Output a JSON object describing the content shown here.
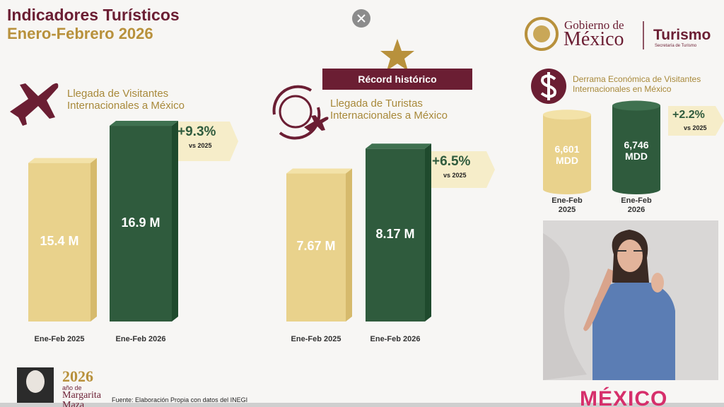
{
  "header": {
    "title": "Indicadores Turísticos",
    "subtitle": "Enero-Febrero 2026"
  },
  "logo": {
    "line1": "Gobierno de",
    "line2": "México",
    "brand": "Turismo",
    "sub": "Secretaría de Turismo"
  },
  "badge": "Récord histórico",
  "chart_data": [
    {
      "type": "bar",
      "shape": "box",
      "title": "Llegada de Visitantes Internacionales a México",
      "categories": [
        "Ene-Feb 2025",
        "Ene-Feb 2026"
      ],
      "values": [
        15.4,
        16.9
      ],
      "value_labels": [
        "15.4 M",
        "16.9 M"
      ],
      "colors": [
        "#e9d28c",
        "#2f5b3d"
      ],
      "ylim": [
        9,
        17.5
      ],
      "annotation": {
        "change": "+9.3%",
        "text": "vs 2025"
      }
    },
    {
      "type": "bar",
      "shape": "box",
      "title": "Llegada de Turistas Internacionales a México",
      "categories": [
        "Ene-Feb 2025",
        "Ene-Feb 2026"
      ],
      "values": [
        7.67,
        8.17
      ],
      "value_labels": [
        "7.67 M",
        "8.17 M"
      ],
      "colors": [
        "#e9d28c",
        "#2f5b3d"
      ],
      "ylim": [
        4.7,
        8.5
      ],
      "annotation": {
        "change": "+6.5%",
        "text": "vs 2025"
      }
    },
    {
      "type": "bar",
      "shape": "cylinder",
      "title": "Derrama Económica de Visitantes Internacionales en México",
      "categories": [
        "Ene-Feb 2025",
        "Ene-Feb 2026"
      ],
      "values": [
        6601,
        6746
      ],
      "value_labels": [
        "6,601 MDD",
        "6,746 MDD"
      ],
      "colors": [
        "#e9d28c",
        "#2f5b3d"
      ],
      "ylim": [
        5400,
        6900
      ],
      "annotation": {
        "change": "+2.2%",
        "text": "vs 2025"
      }
    }
  ],
  "footer": {
    "source": "Fuente: Elaboración Propia con datos del INEGI",
    "year": "2026",
    "year_text": "año de",
    "name": "Margarita Maza",
    "brand": "MÉXICO"
  }
}
